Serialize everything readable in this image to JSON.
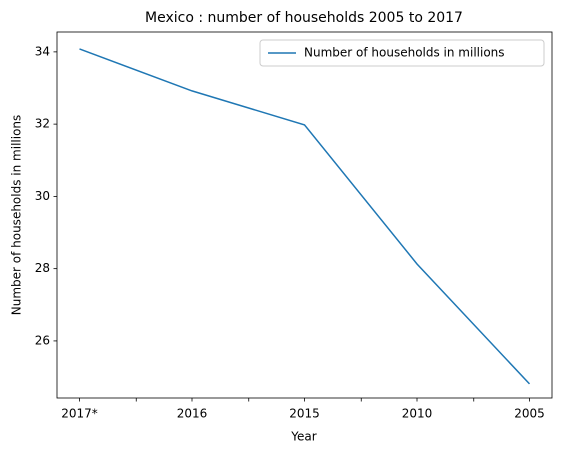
{
  "chart_data": {
    "type": "line",
    "title": "Mexico : number of households 2005 to 2017",
    "x_label": "Year",
    "y_label": "Number of households in millions",
    "categories": [
      "2017*",
      "2016",
      "2015",
      "2010",
      "2005"
    ],
    "series": [
      {
        "name": "Number of households in millions",
        "color": "#1f77b4",
        "values": [
          34.08,
          32.92,
          31.98,
          28.13,
          24.81
        ]
      }
    ],
    "ylim": [
      24.42,
      34.55
    ],
    "yticks": [
      26,
      28,
      30,
      32,
      34
    ],
    "legend": "upper right",
    "grid": false
  }
}
